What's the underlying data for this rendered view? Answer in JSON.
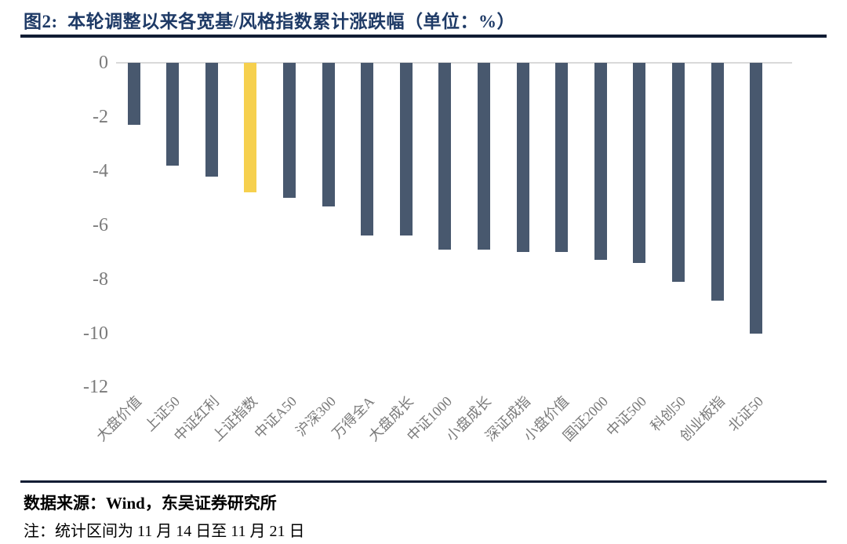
{
  "title": "图2:  本轮调整以来各宽基/风格指数累计涨跌幅（单位：%）",
  "chart_data": {
    "type": "bar",
    "title": "本轮调整以来各宽基/风格指数累计涨跌幅",
    "unit": "%",
    "categories": [
      "大盘价值",
      "上证50",
      "中证红利",
      "上证指数",
      "中证A50",
      "沪深300",
      "万得全A",
      "大盘成长",
      "中证1000",
      "小盘成长",
      "深证成指",
      "小盘价值",
      "国证2000",
      "中证500",
      "科创50",
      "创业板指",
      "北证50"
    ],
    "values": [
      -2.3,
      -3.8,
      -4.2,
      -4.8,
      -5.0,
      -5.3,
      -6.4,
      -6.4,
      -6.9,
      -6.9,
      -7.0,
      -7.0,
      -7.3,
      -7.4,
      -8.1,
      -8.8,
      -10.0
    ],
    "yticks": [
      0,
      -2,
      -4,
      -6,
      -8,
      -10,
      -12
    ],
    "ylim": [
      -12,
      0
    ],
    "grid": false,
    "legend": false,
    "bar_color": "#48586E",
    "highlight_color": "#F6D04E",
    "highlight_category": "上证指数",
    "axis_text_color": "#7a7a7a",
    "zero_line_color": "#d9d9d9"
  },
  "footer": {
    "source": "数据来源：Wind，东吴证券研究所",
    "note": "注：统计区间为 11 月 14 日至 11 月 21 日"
  }
}
